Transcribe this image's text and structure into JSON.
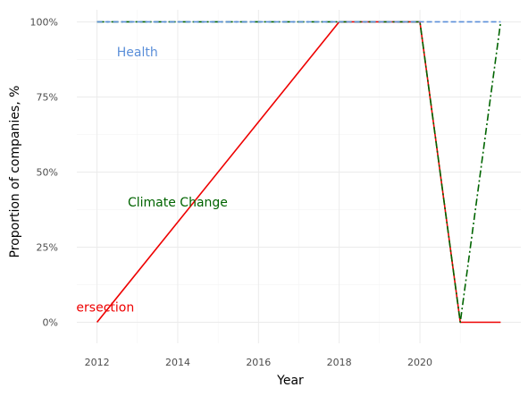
{
  "chart_data": {
    "type": "line",
    "xlabel": "Year",
    "ylabel": "Proportion of companies, %",
    "xlim": [
      2011.5,
      2022.5
    ],
    "ylim": [
      -0.07,
      1.04
    ],
    "x_ticks": [
      2012,
      2014,
      2016,
      2018,
      2020
    ],
    "x_tick_labels": [
      "2012",
      "2014",
      "2016",
      "2018",
      "2020"
    ],
    "y_ticks": [
      0,
      0.25,
      0.5,
      0.75,
      1.0
    ],
    "y_tick_labels": [
      "0%",
      "25%",
      "50%",
      "75%",
      "100%"
    ],
    "grid": true,
    "series": [
      {
        "name": "Intersection",
        "color": "#ee0000",
        "dash": "solid",
        "label": "Intersection",
        "label_at": [
          2012,
          0.05
        ],
        "x": [
          2012,
          2018,
          2020,
          2021,
          2022
        ],
        "y": [
          0,
          1,
          1,
          0,
          0
        ]
      },
      {
        "name": "Climate Change",
        "color": "#006400",
        "dash": "dashdot",
        "label": "Climate Change",
        "label_at": [
          2014,
          0.4
        ],
        "x": [
          2012,
          2020,
          2021,
          2022
        ],
        "y": [
          1,
          1,
          0,
          1
        ]
      },
      {
        "name": "Health",
        "color": "#5b8fd9",
        "dash": "dashed",
        "label": "Health",
        "label_at": [
          2013,
          0.9
        ],
        "x": [
          2012,
          2022
        ],
        "y": [
          1,
          1
        ]
      }
    ]
  }
}
